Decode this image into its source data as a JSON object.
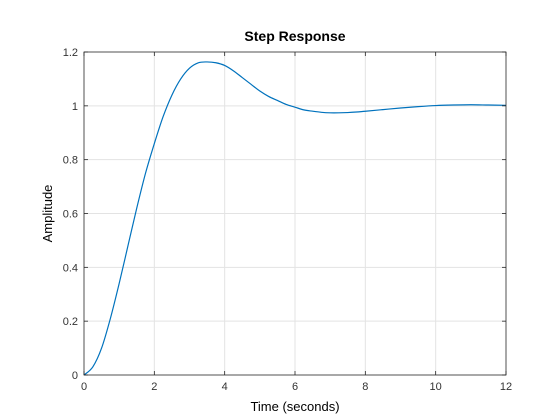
{
  "chart_data": {
    "type": "line",
    "title": "Step Response",
    "xlabel": "Time (seconds)",
    "ylabel": "Amplitude",
    "xlim": [
      0,
      12
    ],
    "ylim": [
      0,
      1.2
    ],
    "xticks": [
      0,
      2,
      4,
      6,
      8,
      10,
      12
    ],
    "xtick_labels": [
      "0",
      "2",
      "4",
      "6",
      "8",
      "10",
      "12"
    ],
    "yticks": [
      0,
      0.2,
      0.4,
      0.6,
      0.8,
      1.0,
      1.2
    ],
    "ytick_labels": [
      "0",
      "0.2",
      "0.4",
      "0.6",
      "0.8",
      "1",
      "1.2"
    ],
    "grid": true,
    "legend": "none",
    "series": [
      {
        "color": "#0072BD",
        "x": [
          0,
          0.25,
          0.5,
          0.75,
          1.0,
          1.25,
          1.5,
          1.75,
          2.0,
          2.25,
          2.5,
          2.75,
          3.0,
          3.25,
          3.5,
          3.75,
          4.0,
          4.25,
          4.5,
          4.75,
          5.0,
          5.25,
          5.5,
          5.75,
          6.0,
          6.25,
          6.5,
          6.75,
          7.0,
          7.25,
          7.5,
          7.75,
          8.0,
          8.5,
          9.0,
          9.5,
          10.0,
          10.5,
          11.0,
          11.5,
          12.0
        ],
        "y": [
          0,
          0.03,
          0.1,
          0.21,
          0.34,
          0.48,
          0.62,
          0.75,
          0.86,
          0.96,
          1.04,
          1.1,
          1.14,
          1.16,
          1.163,
          1.16,
          1.15,
          1.13,
          1.105,
          1.08,
          1.055,
          1.035,
          1.02,
          1.005,
          0.995,
          0.985,
          0.98,
          0.976,
          0.974,
          0.974,
          0.975,
          0.977,
          0.98,
          0.986,
          0.992,
          0.997,
          1.001,
          1.003,
          1.004,
          1.003,
          1.002
        ]
      }
    ]
  }
}
